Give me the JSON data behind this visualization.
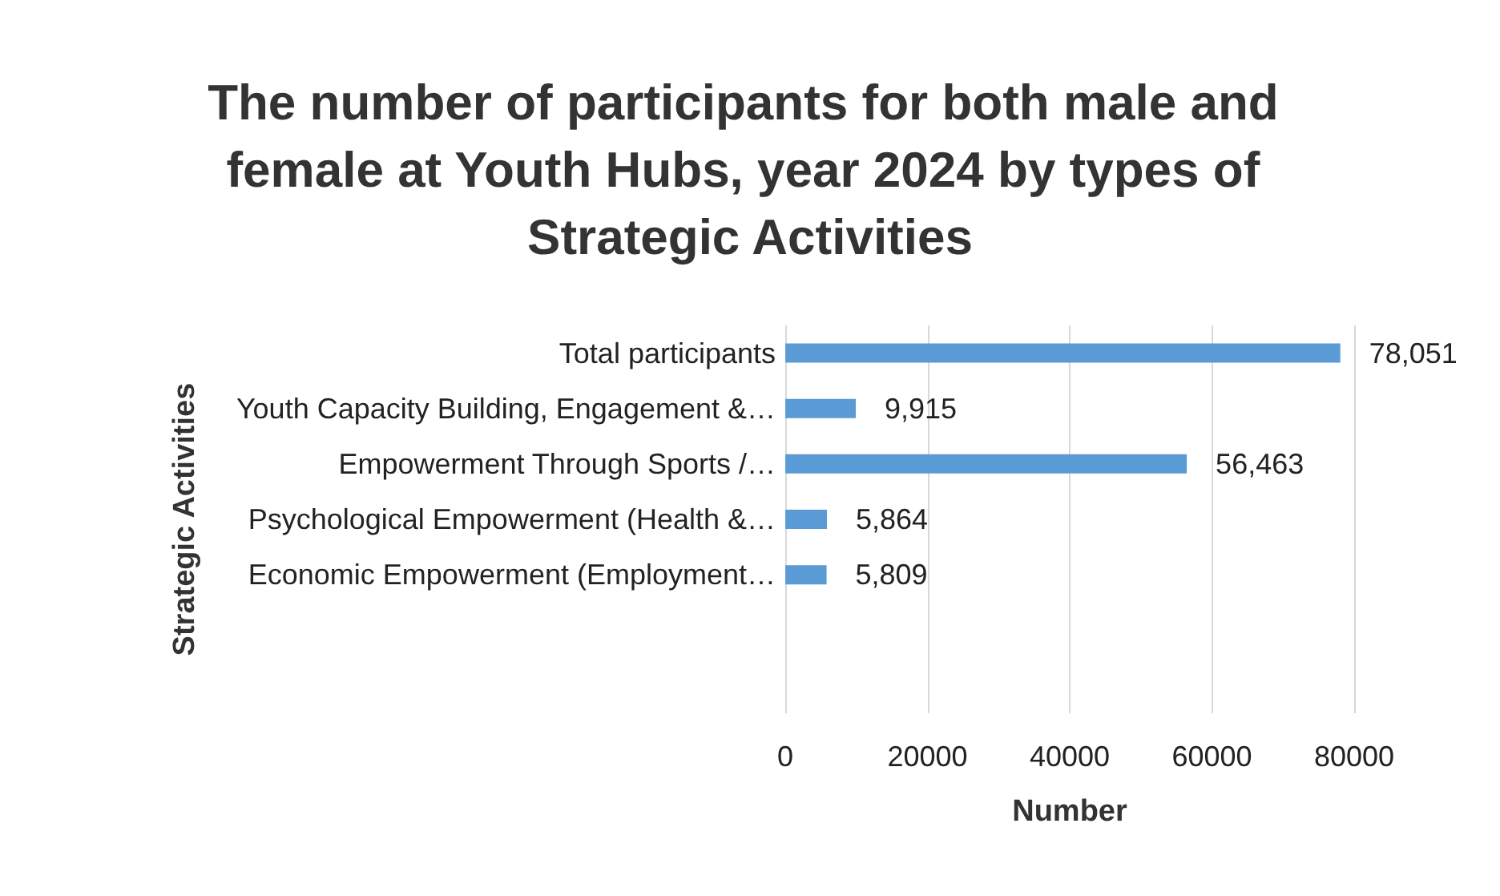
{
  "chart_data": {
    "type": "bar",
    "orientation": "horizontal",
    "title": "The number of participants for both male and female at Youth Hubs, year 2024 by types of Strategic Activities",
    "xlabel": "Number",
    "ylabel": "Strategic Activities",
    "categories": [
      "Total participants",
      "Youth Capacity Building, Engagement &…",
      "Empowerment Through Sports /…",
      "Psychological Empowerment (Health &…",
      "Economic Empowerment (Employment…",
      null,
      null
    ],
    "values": [
      78051,
      9915,
      56463,
      5864,
      5809,
      null,
      null
    ],
    "value_labels": [
      "78,051",
      "9,915",
      "56,463",
      "5,864",
      "5,809",
      null,
      null
    ],
    "color": "#5b9bd5",
    "xlim": [
      0,
      80000
    ],
    "xticks": [
      0,
      20000,
      40000,
      60000,
      80000
    ],
    "grid": "x"
  }
}
